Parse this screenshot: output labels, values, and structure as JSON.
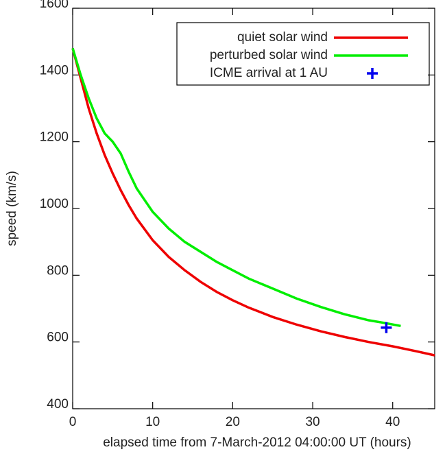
{
  "chart_data": {
    "type": "line",
    "xlabel": "elapsed time from 7-March-2012 04:00:00  UT (hours)",
    "ylabel": "speed (km/s)",
    "xlim": [
      0,
      45.25
    ],
    "ylim": [
      400,
      1600
    ],
    "xticks": [
      0,
      10,
      20,
      30,
      40
    ],
    "yticks": [
      400,
      600,
      800,
      1000,
      1200,
      1400,
      1600
    ],
    "legend": "upper right",
    "series": [
      {
        "name": "quiet solar wind",
        "color": "#ee0000",
        "x": [
          0,
          1,
          2,
          3,
          4,
          5,
          6,
          7,
          8,
          10,
          12,
          14,
          16,
          18,
          20,
          22,
          25,
          28,
          31,
          34,
          37,
          40,
          43,
          45.25
        ],
        "values": [
          1480,
          1390,
          1300,
          1225,
          1160,
          1105,
          1055,
          1010,
          970,
          905,
          855,
          815,
          780,
          750,
          725,
          703,
          675,
          652,
          632,
          615,
          600,
          587,
          572,
          560
        ]
      },
      {
        "name": "perturbed solar wind",
        "color": "#00ee00",
        "x": [
          0,
          1,
          2,
          3,
          4,
          5,
          6,
          7,
          8,
          10,
          12,
          14,
          16,
          18,
          20,
          22,
          25,
          28,
          31,
          34,
          37,
          39,
          41
        ],
        "values": [
          1480,
          1400,
          1330,
          1270,
          1225,
          1200,
          1165,
          1110,
          1060,
          990,
          940,
          900,
          870,
          840,
          815,
          790,
          760,
          730,
          705,
          683,
          665,
          657,
          648
        ]
      },
      {
        "name": "ICME arrival at 1 AU",
        "color": "#0000ee",
        "marker": "+",
        "x": [
          39.2
        ],
        "values": [
          643
        ]
      }
    ]
  }
}
